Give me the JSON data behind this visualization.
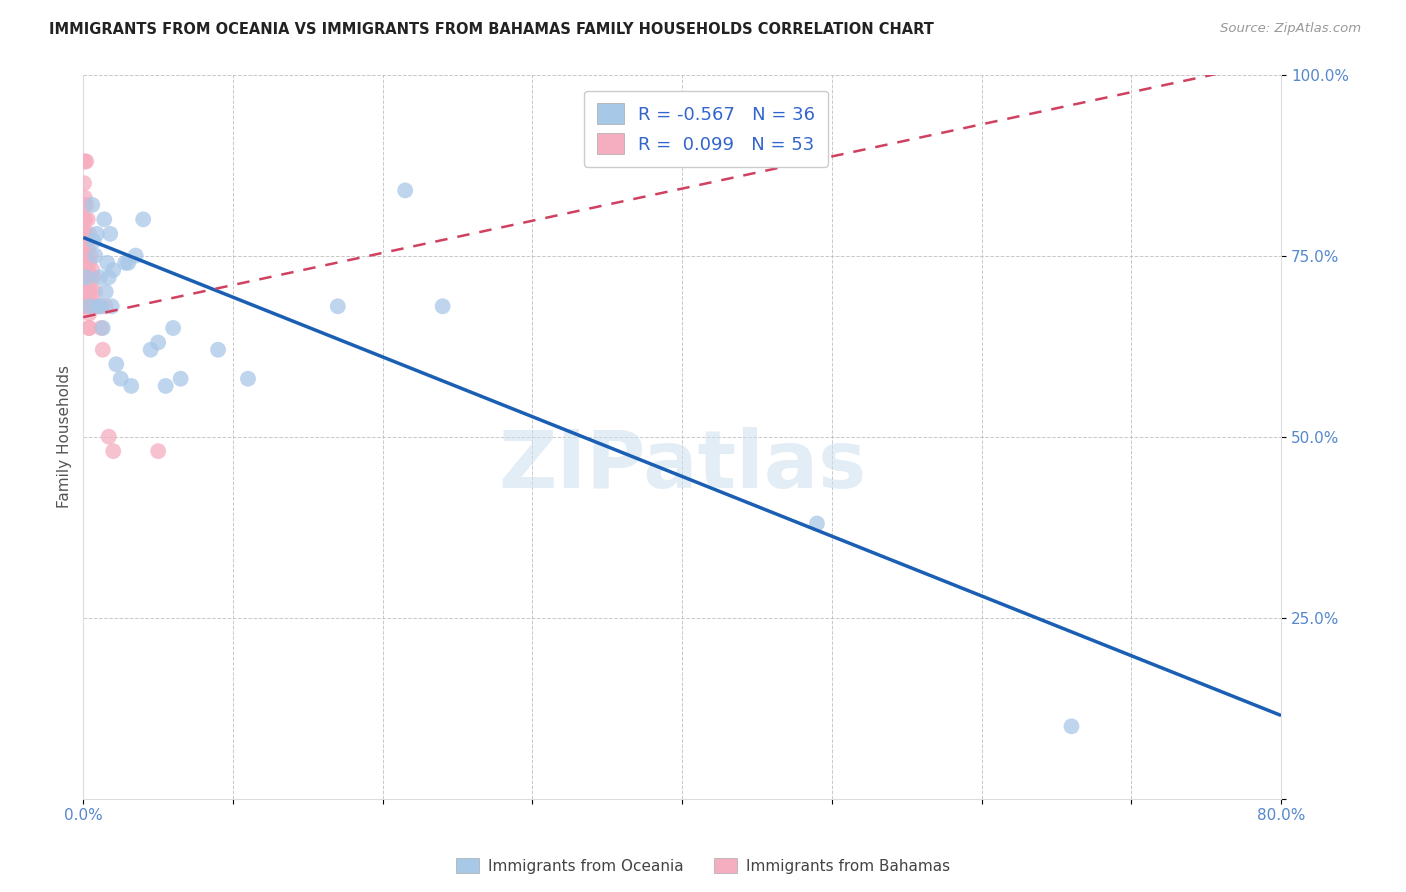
{
  "title": "IMMIGRANTS FROM OCEANIA VS IMMIGRANTS FROM BAHAMAS FAMILY HOUSEHOLDS CORRELATION CHART",
  "source": "Source: ZipAtlas.com",
  "ylabel": "Family Households",
  "xlim": [
    0,
    0.8
  ],
  "ylim": [
    0,
    1.0
  ],
  "oceania_R": -0.567,
  "oceania_N": 36,
  "bahamas_R": 0.099,
  "bahamas_N": 53,
  "oceania_color": "#a8c8e8",
  "bahamas_color": "#f5aec0",
  "oceania_line_color": "#1a5fb4",
  "bahamas_line_color": "#d04060",
  "watermark_text": "ZIPatlas",
  "legend_label_oceania": "Immigrants from Oceania",
  "legend_label_bahamas": "Immigrants from Bahamas",
  "oceania_line_x0": 0.0,
  "oceania_line_y0": 0.775,
  "oceania_line_x1": 0.8,
  "oceania_line_y1": 0.115,
  "bahamas_line_x0": 0.0,
  "bahamas_line_y0": 0.665,
  "bahamas_line_x1": 0.8,
  "bahamas_line_y1": 1.02,
  "oceania_x": [
    0.002,
    0.004,
    0.006,
    0.007,
    0.008,
    0.009,
    0.01,
    0.011,
    0.012,
    0.013,
    0.014,
    0.015,
    0.016,
    0.017,
    0.018,
    0.019,
    0.02,
    0.022,
    0.025,
    0.028,
    0.03,
    0.032,
    0.035,
    0.04,
    0.045,
    0.05,
    0.055,
    0.06,
    0.065,
    0.09,
    0.11,
    0.17,
    0.215,
    0.24,
    0.49,
    0.66
  ],
  "oceania_y": [
    0.72,
    0.68,
    0.82,
    0.77,
    0.75,
    0.78,
    0.68,
    0.72,
    0.68,
    0.65,
    0.8,
    0.7,
    0.74,
    0.72,
    0.78,
    0.68,
    0.73,
    0.6,
    0.58,
    0.74,
    0.74,
    0.57,
    0.75,
    0.8,
    0.62,
    0.63,
    0.57,
    0.65,
    0.58,
    0.62,
    0.58,
    0.68,
    0.84,
    0.68,
    0.38,
    0.1
  ],
  "bahamas_x": [
    0.0002,
    0.0003,
    0.0004,
    0.0005,
    0.0006,
    0.0007,
    0.0008,
    0.0009,
    0.001,
    0.001,
    0.001,
    0.0012,
    0.0013,
    0.0014,
    0.0015,
    0.0016,
    0.0017,
    0.0018,
    0.002,
    0.002,
    0.002,
    0.0022,
    0.0023,
    0.0025,
    0.003,
    0.003,
    0.003,
    0.003,
    0.0033,
    0.0035,
    0.004,
    0.004,
    0.004,
    0.004,
    0.0042,
    0.0045,
    0.005,
    0.005,
    0.005,
    0.006,
    0.006,
    0.007,
    0.007,
    0.008,
    0.009,
    0.01,
    0.011,
    0.012,
    0.013,
    0.015,
    0.017,
    0.02,
    0.05
  ],
  "bahamas_y": [
    0.72,
    0.88,
    0.78,
    0.85,
    0.8,
    0.82,
    0.75,
    0.7,
    0.88,
    0.83,
    0.78,
    0.8,
    0.76,
    0.75,
    0.72,
    0.7,
    0.68,
    0.78,
    0.88,
    0.82,
    0.77,
    0.73,
    0.7,
    0.68,
    0.8,
    0.76,
    0.73,
    0.7,
    0.68,
    0.65,
    0.78,
    0.74,
    0.7,
    0.67,
    0.65,
    0.68,
    0.75,
    0.72,
    0.68,
    0.73,
    0.7,
    0.72,
    0.68,
    0.7,
    0.68,
    0.68,
    0.68,
    0.65,
    0.62,
    0.68,
    0.5,
    0.48,
    0.48
  ]
}
